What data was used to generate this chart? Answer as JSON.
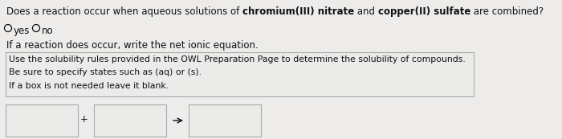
{
  "bg_color": "#edecea",
  "line1_normal1": "Does a reaction occur when aqueous solutions of ",
  "line1_bold1": "chromium(III) nitrate",
  "line1_normal2": " and ",
  "line1_bold2": "copper(II) sulfate",
  "line1_normal3": " are combined?",
  "line3": "If a reaction does occur, write the net ionic equation.",
  "box_text_line1": "Use the solubility rules provided in the OWL Preparation Page to determine the solubility of compounds.",
  "box_text_line2": "Be sure to specify states such as (aq) or (s).",
  "box_text_line3": "If a box is not needed leave it blank.",
  "font_size_main": 8.5,
  "font_size_box": 7.8,
  "box_bg": "#ebebea",
  "input_box_bg": "#ebebea",
  "border_color": "#aaaaaa",
  "text_color": "#111111"
}
